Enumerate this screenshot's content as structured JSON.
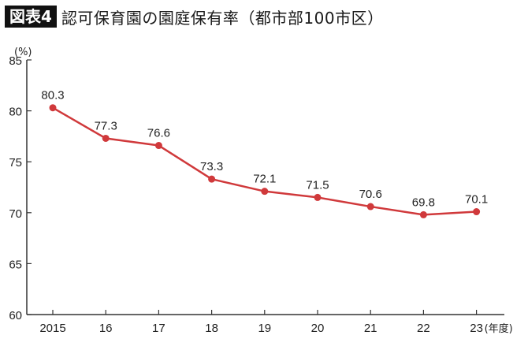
{
  "header": {
    "figure_label": "図表4",
    "title": "認可保育園の園庭保有率（都市部100市区）"
  },
  "chart_data": {
    "type": "line",
    "title": "認可保育園の園庭保有率（都市部100市区）",
    "figure_label": "図表4",
    "xlabel": "(年度)",
    "ylabel": "(%)",
    "categories": [
      "2015",
      "16",
      "17",
      "18",
      "19",
      "20",
      "21",
      "22",
      "23"
    ],
    "series": [
      {
        "name": "園庭保有率",
        "values": [
          80.3,
          77.3,
          76.6,
          73.3,
          72.1,
          71.5,
          70.6,
          69.8,
          70.1
        ],
        "color": "#d0393b"
      }
    ],
    "data_labels": [
      "80.3",
      "77.3",
      "76.6",
      "73.3",
      "72.1",
      "71.5",
      "70.6",
      "69.8",
      "70.1"
    ],
    "yticks": [
      "85",
      "80",
      "75",
      "70",
      "65",
      "60"
    ],
    "ylim": [
      60,
      85
    ],
    "grid": false,
    "legend": "none"
  },
  "axis": {
    "y_unit": "(%)",
    "x_unit": "(年度)"
  },
  "colors": {
    "line": "#d0393b",
    "axis": "#333333",
    "label_bg": "#111111"
  }
}
